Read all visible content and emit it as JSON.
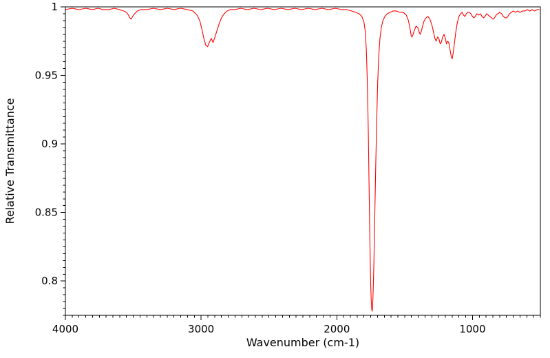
{
  "chart_data": {
    "type": "line",
    "title": "",
    "xlabel": "Wavenumber (cm-1)",
    "ylabel": "Relative Transmittance",
    "grid": false,
    "legend": "none",
    "line_color": "#ff0000",
    "frame_color": "#000000",
    "background_color": "#ffffff",
    "x_axis": {
      "left": 4000,
      "right": 500,
      "reversed": true,
      "major_ticks": [
        4000,
        3000,
        2000,
        1000
      ],
      "tick_labels": [
        "4000",
        "3000",
        "2000",
        "1000"
      ],
      "minor_tick_step": 50
    },
    "y_axis": {
      "min": 0.775,
      "max": 1.0,
      "major_ticks": [
        1,
        0.95,
        0.9,
        0.85,
        0.8
      ],
      "tick_labels": [
        "1",
        "0.95",
        "0.9",
        "0.85",
        "0.8"
      ],
      "minor_tick_step": 0.005
    },
    "series": [
      {
        "name": "IR spectrum",
        "color": "#ff0000",
        "points": [
          [
            4000,
            0.998
          ],
          [
            3950,
            0.999
          ],
          [
            3900,
            0.998
          ],
          [
            3850,
            0.999
          ],
          [
            3800,
            0.998
          ],
          [
            3760,
            0.999
          ],
          [
            3720,
            0.998
          ],
          [
            3680,
            0.998
          ],
          [
            3640,
            0.999
          ],
          [
            3600,
            0.998
          ],
          [
            3570,
            0.997
          ],
          [
            3550,
            0.996
          ],
          [
            3535,
            0.994
          ],
          [
            3525,
            0.992
          ],
          [
            3515,
            0.991
          ],
          [
            3505,
            0.993
          ],
          [
            3490,
            0.995
          ],
          [
            3470,
            0.997
          ],
          [
            3445,
            0.998
          ],
          [
            3400,
            0.998
          ],
          [
            3350,
            0.999
          ],
          [
            3300,
            0.998
          ],
          [
            3250,
            0.999
          ],
          [
            3200,
            0.998
          ],
          [
            3150,
            0.999
          ],
          [
            3100,
            0.998
          ],
          [
            3060,
            0.997
          ],
          [
            3030,
            0.994
          ],
          [
            3010,
            0.99
          ],
          [
            2995,
            0.984
          ],
          [
            2980,
            0.977
          ],
          [
            2965,
            0.972
          ],
          [
            2952,
            0.971
          ],
          [
            2940,
            0.974
          ],
          [
            2925,
            0.977
          ],
          [
            2912,
            0.974
          ],
          [
            2898,
            0.978
          ],
          [
            2882,
            0.983
          ],
          [
            2866,
            0.988
          ],
          [
            2850,
            0.992
          ],
          [
            2830,
            0.995
          ],
          [
            2808,
            0.997
          ],
          [
            2785,
            0.998
          ],
          [
            2750,
            0.998
          ],
          [
            2710,
            0.999
          ],
          [
            2660,
            0.998
          ],
          [
            2610,
            0.999
          ],
          [
            2560,
            0.998
          ],
          [
            2510,
            0.999
          ],
          [
            2460,
            0.998
          ],
          [
            2410,
            0.999
          ],
          [
            2360,
            0.998
          ],
          [
            2310,
            0.999
          ],
          [
            2260,
            0.998
          ],
          [
            2210,
            0.999
          ],
          [
            2160,
            0.998
          ],
          [
            2110,
            0.999
          ],
          [
            2060,
            0.998
          ],
          [
            2010,
            0.999
          ],
          [
            1965,
            0.998
          ],
          [
            1925,
            0.998
          ],
          [
            1890,
            0.997
          ],
          [
            1860,
            0.996
          ],
          [
            1835,
            0.995
          ],
          [
            1815,
            0.993
          ],
          [
            1800,
            0.989
          ],
          [
            1790,
            0.982
          ],
          [
            1782,
            0.968
          ],
          [
            1775,
            0.945
          ],
          [
            1768,
            0.91
          ],
          [
            1762,
            0.868
          ],
          [
            1756,
            0.828
          ],
          [
            1751,
            0.8
          ],
          [
            1746,
            0.785
          ],
          [
            1742,
            0.779
          ],
          [
            1739,
            0.778
          ],
          [
            1736,
            0.782
          ],
          [
            1732,
            0.793
          ],
          [
            1727,
            0.812
          ],
          [
            1721,
            0.843
          ],
          [
            1714,
            0.88
          ],
          [
            1707,
            0.913
          ],
          [
            1699,
            0.944
          ],
          [
            1691,
            0.964
          ],
          [
            1682,
            0.977
          ],
          [
            1672,
            0.985
          ],
          [
            1660,
            0.99
          ],
          [
            1646,
            0.993
          ],
          [
            1628,
            0.995
          ],
          [
            1608,
            0.996
          ],
          [
            1585,
            0.997
          ],
          [
            1560,
            0.997
          ],
          [
            1535,
            0.996
          ],
          [
            1510,
            0.996
          ],
          [
            1488,
            0.994
          ],
          [
            1472,
            0.99
          ],
          [
            1460,
            0.984
          ],
          [
            1452,
            0.979
          ],
          [
            1446,
            0.978
          ],
          [
            1438,
            0.98
          ],
          [
            1428,
            0.983
          ],
          [
            1416,
            0.986
          ],
          [
            1404,
            0.985
          ],
          [
            1394,
            0.982
          ],
          [
            1386,
            0.98
          ],
          [
            1378,
            0.982
          ],
          [
            1368,
            0.986
          ],
          [
            1356,
            0.99
          ],
          [
            1342,
            0.992
          ],
          [
            1328,
            0.993
          ],
          [
            1314,
            0.991
          ],
          [
            1300,
            0.987
          ],
          [
            1288,
            0.982
          ],
          [
            1277,
            0.977
          ],
          [
            1268,
            0.975
          ],
          [
            1258,
            0.978
          ],
          [
            1248,
            0.977
          ],
          [
            1238,
            0.973
          ],
          [
            1230,
            0.974
          ],
          [
            1220,
            0.978
          ],
          [
            1210,
            0.98
          ],
          [
            1200,
            0.977
          ],
          [
            1192,
            0.973
          ],
          [
            1184,
            0.975
          ],
          [
            1175,
            0.974
          ],
          [
            1166,
            0.969
          ],
          [
            1157,
            0.964
          ],
          [
            1150,
            0.962
          ],
          [
            1143,
            0.966
          ],
          [
            1134,
            0.973
          ],
          [
            1124,
            0.981
          ],
          [
            1113,
            0.988
          ],
          [
            1100,
            0.993
          ],
          [
            1088,
            0.995
          ],
          [
            1076,
            0.996
          ],
          [
            1066,
            0.994
          ],
          [
            1056,
            0.993
          ],
          [
            1046,
            0.995
          ],
          [
            1036,
            0.996
          ],
          [
            1024,
            0.996
          ],
          [
            1012,
            0.995
          ],
          [
            1000,
            0.993
          ],
          [
            990,
            0.992
          ],
          [
            980,
            0.993
          ],
          [
            968,
            0.995
          ],
          [
            955,
            0.994
          ],
          [
            942,
            0.995
          ],
          [
            930,
            0.993
          ],
          [
            918,
            0.992
          ],
          [
            908,
            0.993
          ],
          [
            896,
            0.995
          ],
          [
            884,
            0.994
          ],
          [
            872,
            0.993
          ],
          [
            860,
            0.992
          ],
          [
            848,
            0.991
          ],
          [
            838,
            0.992
          ],
          [
            826,
            0.994
          ],
          [
            814,
            0.995
          ],
          [
            800,
            0.996
          ],
          [
            786,
            0.995
          ],
          [
            772,
            0.993
          ],
          [
            760,
            0.992
          ],
          [
            750,
            0.992
          ],
          [
            740,
            0.993
          ],
          [
            728,
            0.995
          ],
          [
            714,
            0.996
          ],
          [
            700,
            0.997
          ],
          [
            684,
            0.996
          ],
          [
            668,
            0.997
          ],
          [
            650,
            0.996
          ],
          [
            632,
            0.997
          ],
          [
            614,
            0.997
          ],
          [
            596,
            0.998
          ],
          [
            578,
            0.997
          ],
          [
            560,
            0.998
          ],
          [
            542,
            0.997
          ],
          [
            524,
            0.998
          ],
          [
            510,
            0.998
          ]
        ]
      }
    ]
  }
}
